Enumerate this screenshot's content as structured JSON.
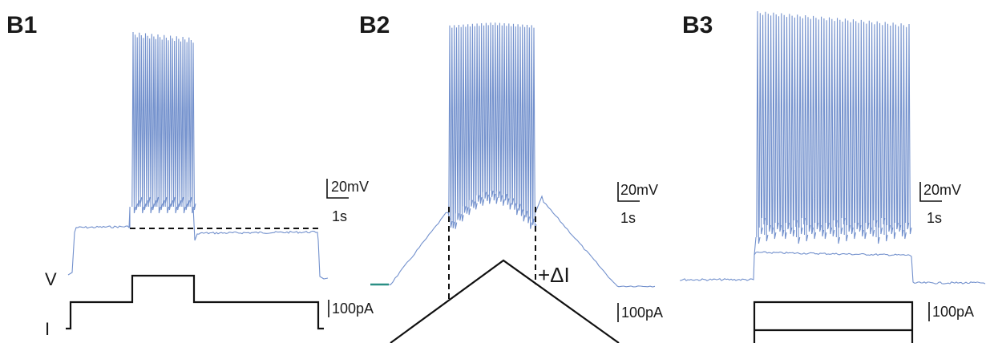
{
  "panels": [
    {
      "label": "B1",
      "voltage_scale": "20mV",
      "time_scale": "1s",
      "current_scale": "100pA",
      "voltage_trace_label": "V",
      "current_trace_label": "I"
    },
    {
      "label": "B2",
      "voltage_scale": "20mV",
      "time_scale": "1s",
      "current_scale": "100pA",
      "annotation": "+ΔI"
    },
    {
      "label": "B3",
      "voltage_scale": "20mV",
      "time_scale": "1s",
      "current_scale": "100pA"
    }
  ],
  "colors": {
    "voltage_trace": "#7391cd",
    "current_trace": "#111111",
    "baseline_segment": "#2a8f85",
    "text": "#1a1a1a"
  }
}
